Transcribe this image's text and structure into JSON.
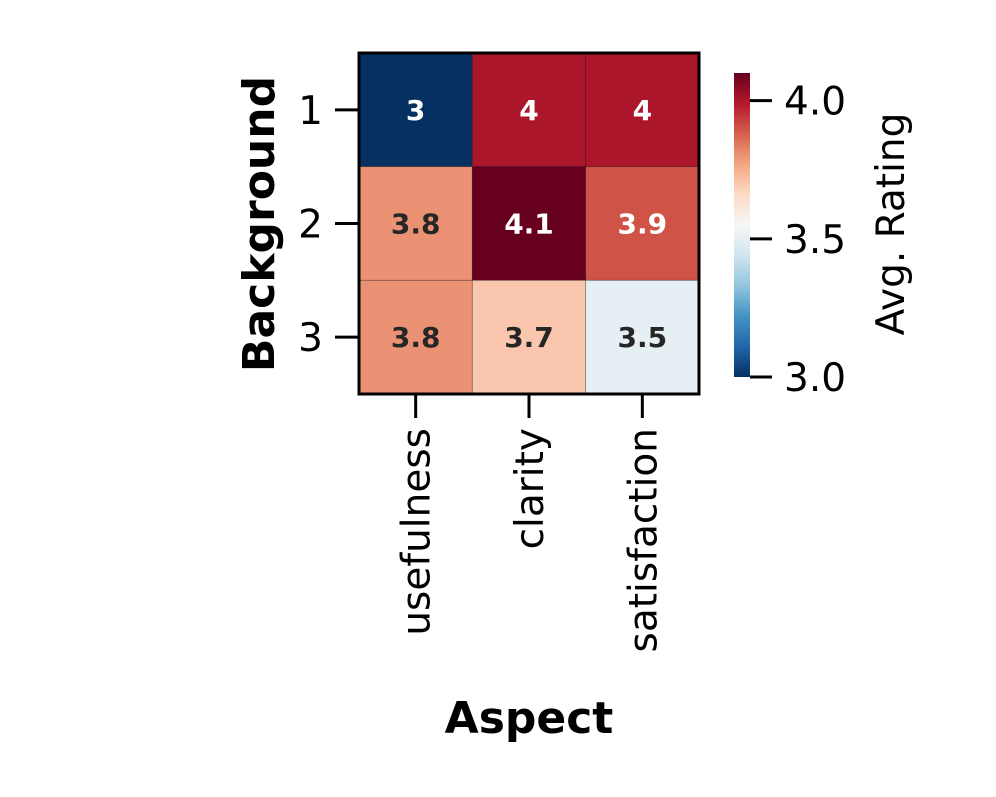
{
  "chart_data": {
    "type": "heatmap",
    "title": "",
    "xlabel": "Aspect",
    "ylabel": "Background",
    "x_categories": [
      "usefulness",
      "clarity",
      "satisfaction"
    ],
    "y_categories": [
      "1",
      "2",
      "3"
    ],
    "values": [
      [
        3.0,
        4.0,
        4.0
      ],
      [
        3.8,
        4.1,
        3.9
      ],
      [
        3.8,
        3.7,
        3.5
      ]
    ],
    "cell_labels": [
      [
        "3",
        "4",
        "4"
      ],
      [
        "3.8",
        "4.1",
        "3.9"
      ],
      [
        "3.8",
        "3.7",
        "3.5"
      ]
    ],
    "colormap": "RdBu_r",
    "colorbar": {
      "label": "Avg. Rating",
      "range": [
        3.0,
        4.1
      ],
      "ticks": [
        3.0,
        3.5,
        4.0
      ],
      "tick_labels": [
        "3.0",
        "3.5",
        "4.0"
      ],
      "placement": "right"
    },
    "colors": {
      "low": "#053061",
      "mid": "#f7f7f7",
      "high": "#67001f",
      "dark_text": "#262626",
      "light_text": "#ffffff"
    }
  }
}
